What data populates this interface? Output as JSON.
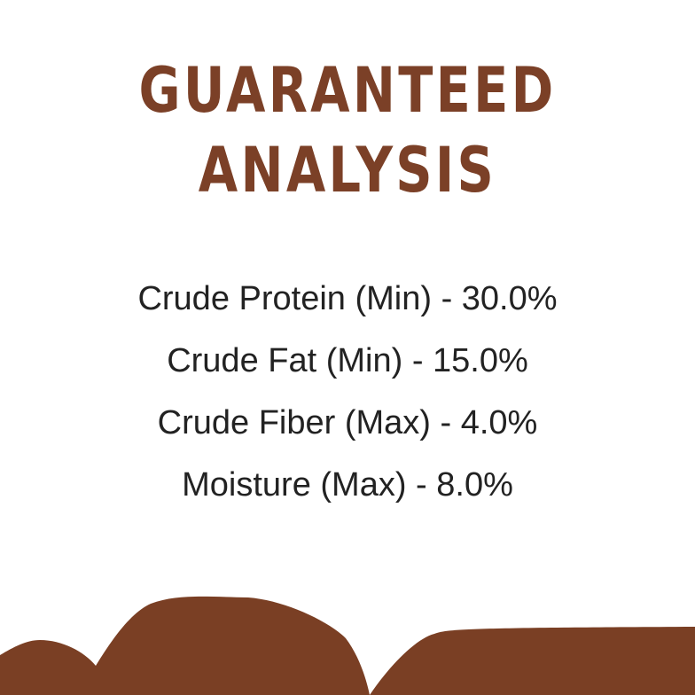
{
  "title": {
    "line1": "GUARANTEED",
    "line2": "ANALYSIS"
  },
  "analysis": [
    "Crude Protein (Min) - 30.0%",
    "Crude Fat (Min) - 15.0%",
    "Crude Fiber (Max) - 4.0%",
    "Moisture (Max) - 8.0%"
  ],
  "colors": {
    "brand": "#7a3f24",
    "text": "#222222",
    "background": "#ffffff"
  }
}
